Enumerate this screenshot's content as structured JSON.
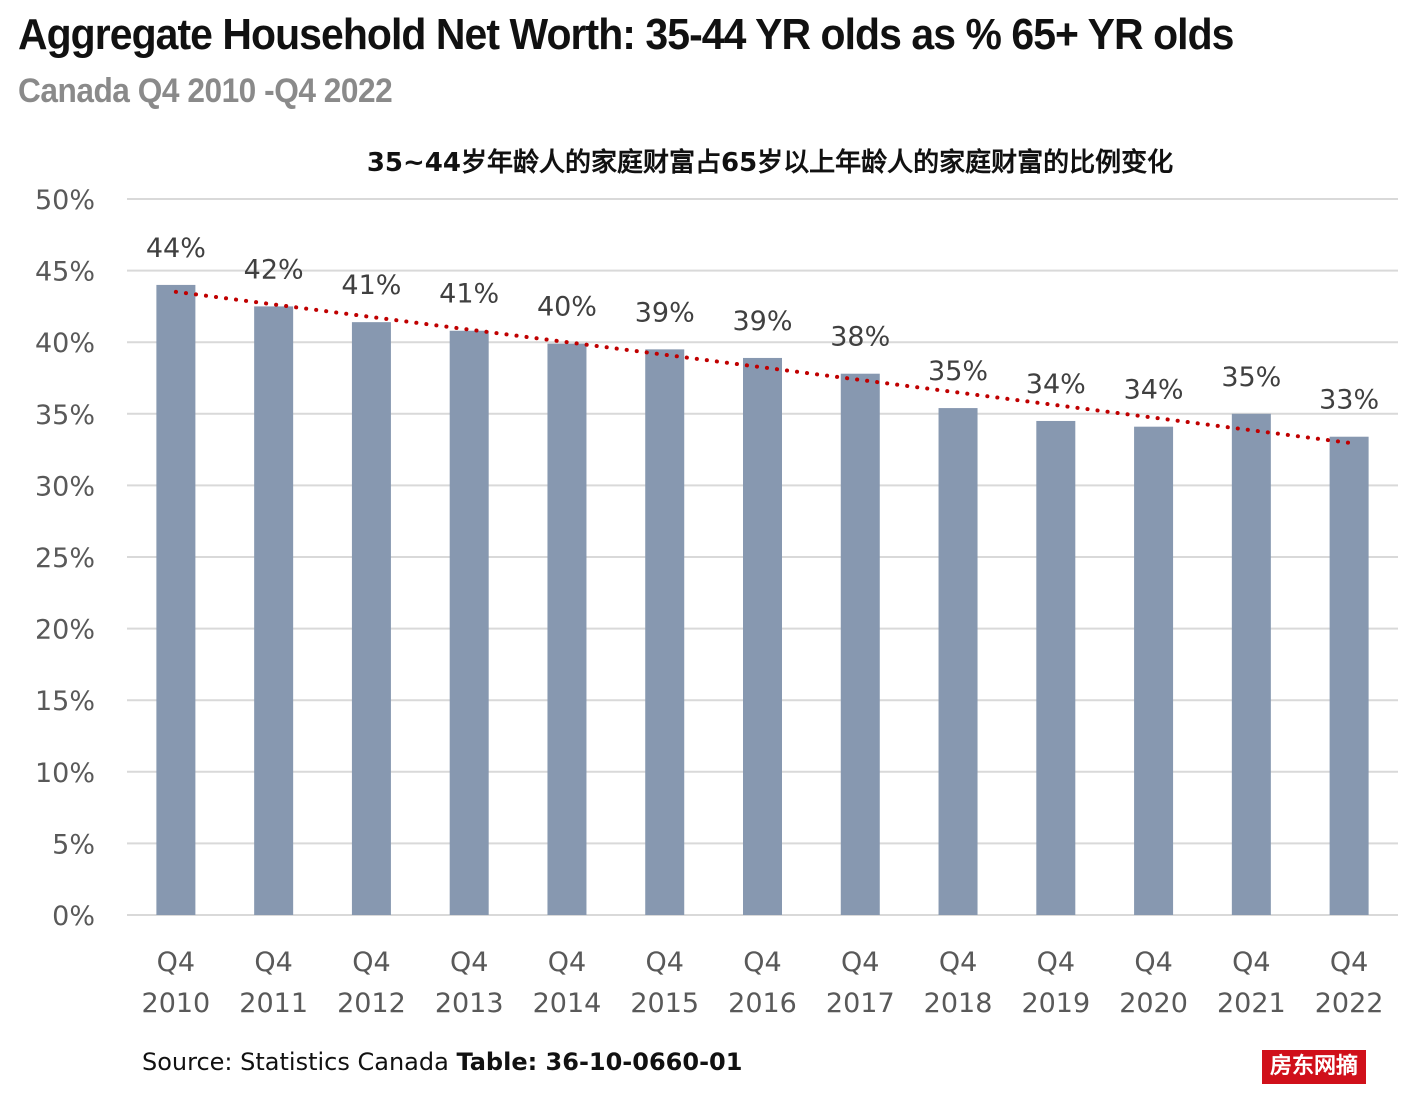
{
  "header": {
    "title": "Aggregate Household Net Worth: 35-44 YR olds as % 65+ YR olds",
    "subtitle": "Canada Q4 2010 -Q4 2022"
  },
  "footer": {
    "source_prefix": "Source: Statistics Canada ",
    "source_table": "Table: 36-10-0660-01",
    "watermark": "房东网摘"
  },
  "colors": {
    "bar": "#8798b0",
    "trendline": "#c00000",
    "grid": "#d9d9d9",
    "text": "#595959",
    "watermark_bg": "#d0101a"
  },
  "chart_data": {
    "type": "bar",
    "title": "35~44岁年龄人的家庭财富占65岁以上年龄人的家庭财富的比例变化",
    "categories": [
      [
        "Q4",
        "2010"
      ],
      [
        "Q4",
        "2011"
      ],
      [
        "Q4",
        "2012"
      ],
      [
        "Q4",
        "2013"
      ],
      [
        "Q4",
        "2014"
      ],
      [
        "Q4",
        "2015"
      ],
      [
        "Q4",
        "2016"
      ],
      [
        "Q4",
        "2017"
      ],
      [
        "Q4",
        "2018"
      ],
      [
        "Q4",
        "2019"
      ],
      [
        "Q4",
        "2020"
      ],
      [
        "Q4",
        "2021"
      ],
      [
        "Q4",
        "2022"
      ]
    ],
    "values": [
      44.0,
      42.5,
      41.4,
      40.8,
      39.9,
      39.5,
      38.9,
      37.8,
      35.4,
      34.5,
      34.1,
      35.0,
      33.4
    ],
    "data_labels": [
      "44%",
      "42%",
      "41%",
      "41%",
      "40%",
      "39%",
      "39%",
      "38%",
      "35%",
      "34%",
      "34%",
      "35%",
      "33%"
    ],
    "ylim": [
      0,
      50
    ],
    "yticks": [
      "0%",
      "5%",
      "10%",
      "15%",
      "20%",
      "25%",
      "30%",
      "35%",
      "40%",
      "45%",
      "50%"
    ],
    "trendline": {
      "type": "linear",
      "style": "dotted"
    },
    "grid": true,
    "legend": "none"
  }
}
